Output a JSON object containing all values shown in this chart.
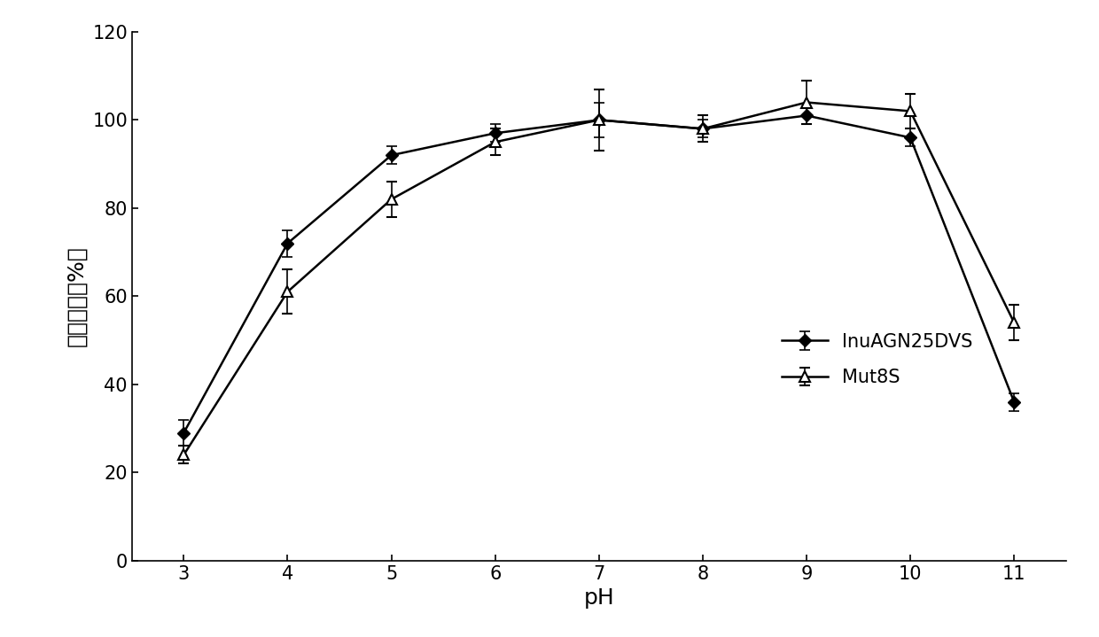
{
  "x": [
    3,
    4,
    5,
    6,
    7,
    8,
    9,
    10,
    11
  ],
  "InuAGN25DVS_y": [
    29,
    72,
    92,
    97,
    100,
    98,
    101,
    96,
    36
  ],
  "InuAGN25DVS_err": [
    3,
    3,
    2,
    2,
    4,
    2,
    2,
    2,
    2
  ],
  "Mut8S_y": [
    24,
    61,
    82,
    95,
    100,
    98,
    104,
    102,
    54
  ],
  "Mut8S_err": [
    2,
    5,
    4,
    3,
    7,
    3,
    5,
    4,
    4
  ],
  "xlabel": "pH",
  "ylabel": "相对酶活（%）",
  "ylim": [
    0,
    120
  ],
  "yticks": [
    0,
    20,
    40,
    60,
    80,
    100,
    120
  ],
  "ytick_labels": [
    "0",
    "20",
    "40",
    "60",
    "80",
    "100",
    "120"
  ],
  "xticks": [
    3,
    4,
    5,
    6,
    7,
    8,
    9,
    10,
    11
  ],
  "legend_InuAGN25DVS": "InuAGN25DVS",
  "legend_Mut8S": "Mut8S",
  "line_color": "#000000",
  "background_color": "#ffffff",
  "label_fontsize": 18,
  "tick_fontsize": 15,
  "legend_fontsize": 15
}
